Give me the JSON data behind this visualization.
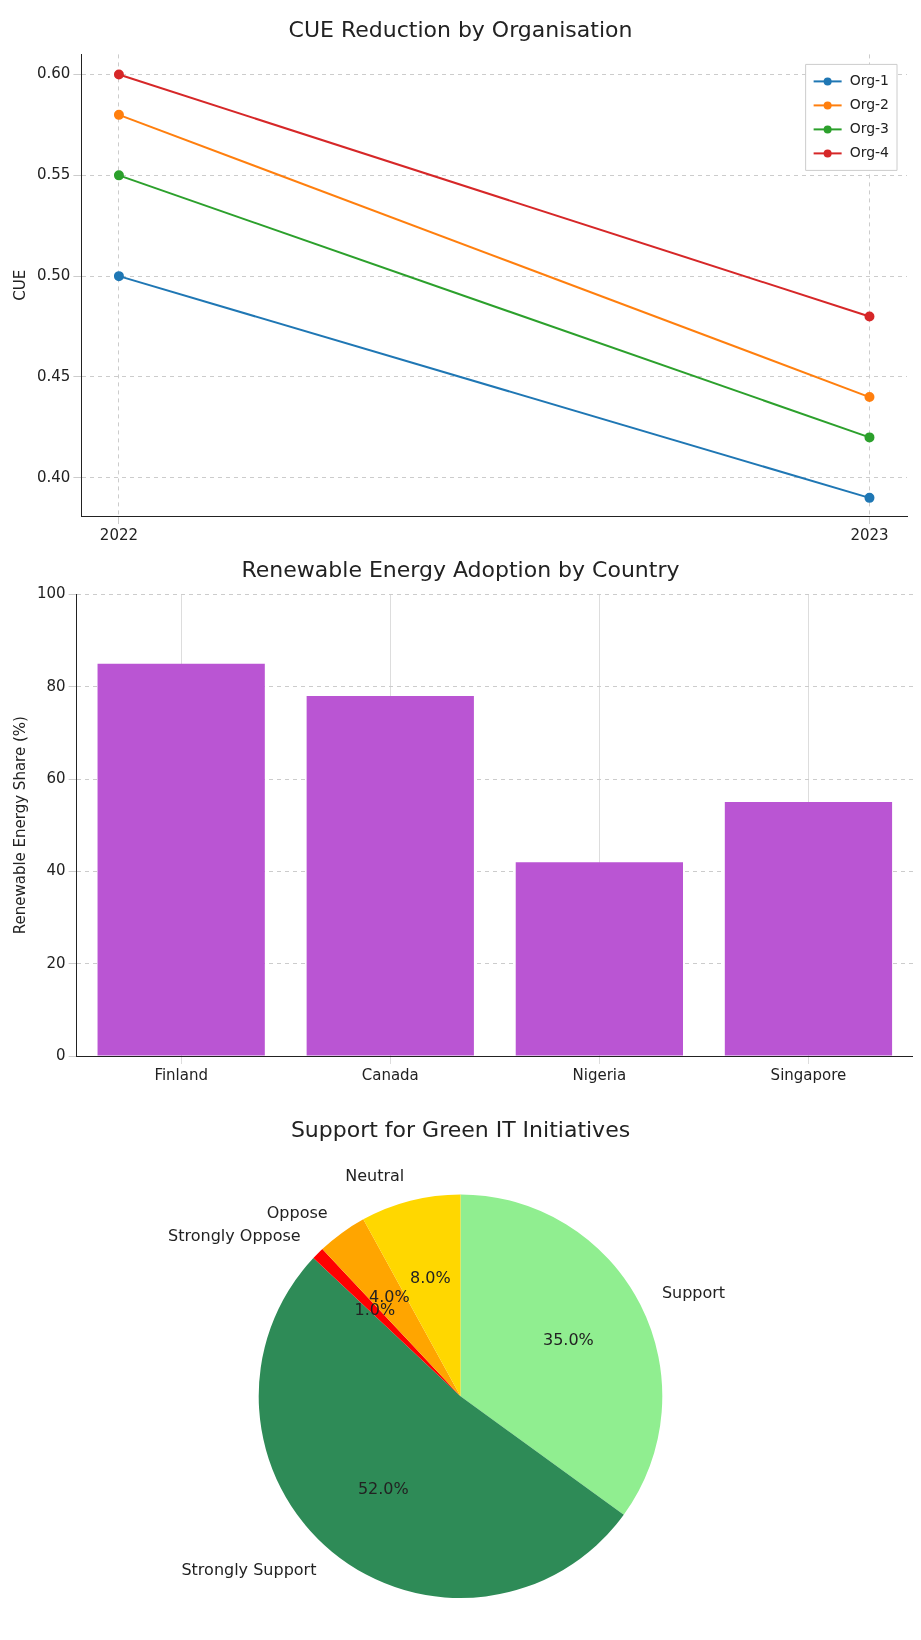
{
  "chart_data": [
    {
      "type": "line",
      "title": "CUE Reduction by Organisation",
      "ylabel": "CUE",
      "x": [
        2022,
        2023
      ],
      "xlim": [
        2021.95,
        2023.05
      ],
      "xticks": [
        2022,
        2023
      ],
      "series": [
        {
          "name": "Org-1",
          "color": "#1f77b4",
          "values": [
            0.5,
            0.39
          ]
        },
        {
          "name": "Org-2",
          "color": "#ff7f0e",
          "values": [
            0.58,
            0.44
          ]
        },
        {
          "name": "Org-3",
          "color": "#2ca02c",
          "values": [
            0.55,
            0.42
          ]
        },
        {
          "name": "Org-4",
          "color": "#d62728",
          "values": [
            0.6,
            0.48
          ]
        }
      ],
      "ylim": [
        0.381,
        0.61
      ],
      "yticks": [
        {
          "value": 0.4,
          "label": "0.40"
        },
        {
          "value": 0.45,
          "label": "0.45"
        },
        {
          "value": 0.5,
          "label": "0.50"
        },
        {
          "value": 0.55,
          "label": "0.55"
        },
        {
          "value": 0.6,
          "label": "0.60"
        }
      ],
      "grid": true,
      "legend": "top right",
      "marker": "circle",
      "line_style": "solid"
    },
    {
      "type": "bar",
      "title": "Renewable Energy Adoption by Country",
      "ylabel": "Renewable Energy Share (%)",
      "categories": [
        "Finland",
        "Canada",
        "Nigeria",
        "Singapore"
      ],
      "values": [
        85,
        78,
        42,
        55
      ],
      "color": "#ba55d3",
      "ylim": [
        0,
        100
      ],
      "yticks": [
        0,
        20,
        40,
        60,
        80,
        100
      ],
      "grid": true
    },
    {
      "type": "pie",
      "title": "Support for Green IT Initiatives",
      "categories": [
        "Support",
        "Strongly Support",
        "Strongly Oppose",
        "Oppose",
        "Neutral"
      ],
      "values": [
        35,
        52,
        1,
        4,
        8
      ],
      "colors": [
        "#90ee90",
        "#2e8b57",
        "#ff0000",
        "#ffa500",
        "#ffd700"
      ],
      "value_labels": [
        "35.0%",
        "52.0%",
        "1.0%",
        "4.0%",
        "8.0%"
      ]
    }
  ]
}
